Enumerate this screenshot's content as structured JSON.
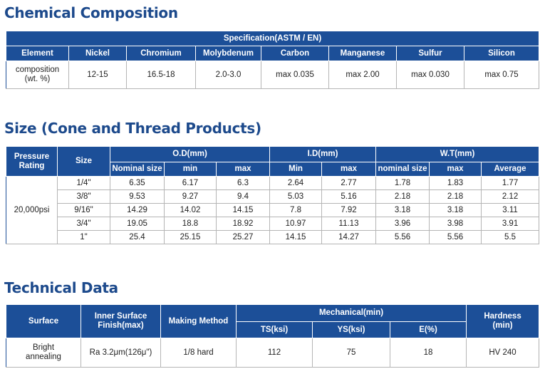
{
  "sections": {
    "chemical": {
      "title": "Chemical Composition"
    },
    "size": {
      "title": "Size (Cone and Thread Products)"
    },
    "technical": {
      "title": "Technical Data"
    }
  },
  "chemical_table": {
    "spec_header": "Specification(ASTM / EN)",
    "columns": [
      "Element",
      "Nickel",
      "Chromium",
      "Molybdenum",
      "Carbon",
      "Manganese",
      "Sulfur",
      "Silicon"
    ],
    "row_label": "composition\n(wt. %)",
    "values": [
      "12-15",
      "16.5-18",
      "2.0-3.0",
      "max 0.035",
      "max 2.00",
      "max 0.030",
      "max 0.75"
    ]
  },
  "size_table": {
    "pressure_header": "Pressure\nRating",
    "size_header": "Size",
    "od_header": "O.D(mm)",
    "id_header": "I.D(mm)",
    "wt_header": "W.T(mm)",
    "sub_headers": [
      "Nominal size",
      "min",
      "max",
      "Min",
      "max",
      "nominal size",
      "max",
      "Average"
    ],
    "pressure": "20,000psi",
    "rows": [
      [
        "1/4\"",
        "6.35",
        "6.17",
        "6.3",
        "2.64",
        "2.77",
        "1.78",
        "1.83",
        "1.77"
      ],
      [
        "3/8\"",
        "9.53",
        "9.27",
        "9.4",
        "5.03",
        "5.16",
        "2.18",
        "2.18",
        "2.12"
      ],
      [
        "9/16\"",
        "14.29",
        "14.02",
        "14.15",
        "7.8",
        "7.92",
        "3.18",
        "3.18",
        "3.11"
      ],
      [
        "3/4\"",
        "19.05",
        "18.8",
        "18.92",
        "10.97",
        "11.13",
        "3.96",
        "3.98",
        "3.91"
      ],
      [
        "1\"",
        "25.4",
        "25.15",
        "25.27",
        "14.15",
        "14.27",
        "5.56",
        "5.56",
        "5.5"
      ]
    ]
  },
  "tech_table": {
    "headers": {
      "surface": "Surface",
      "inner": "Inner Surface\nFinish(max)",
      "method": "Making Method",
      "mechanical": "Mechanical(min)",
      "ts": "TS(ksi)",
      "ys": "YS(ksi)",
      "e": "E(%)",
      "hardness": "Hardness\n(min)"
    },
    "row": {
      "surface": "Bright\nannealing",
      "inner": "Ra 3.2μm(126μ\")",
      "method": "1/8 hard",
      "ts": "112",
      "ys": "75",
      "e": "18",
      "hardness": "HV 240"
    }
  }
}
